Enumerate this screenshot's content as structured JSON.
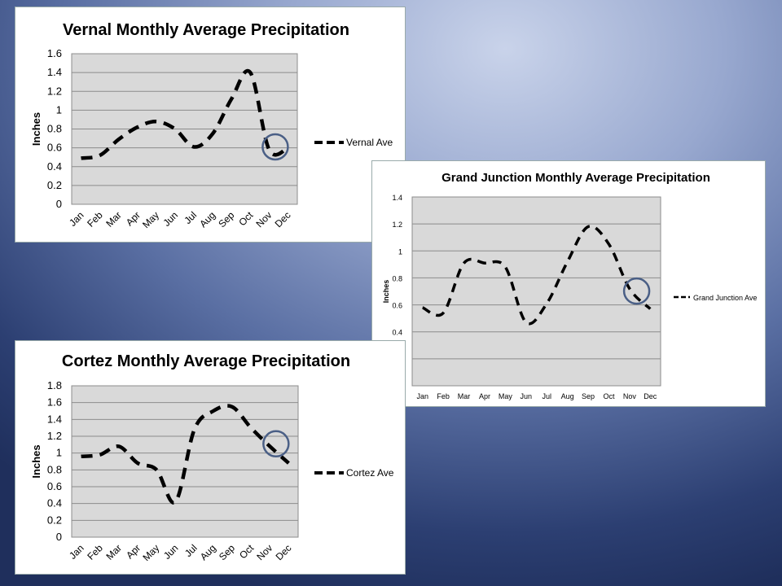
{
  "chart_data": [
    {
      "type": "line",
      "title": "Vernal Monthly Average Precipitation",
      "ylabel": "Inches",
      "xlabel": "",
      "categories": [
        "Jan",
        "Feb",
        "Mar",
        "Apr",
        "May",
        "Jun",
        "Jul",
        "Aug",
        "Sep",
        "Oct",
        "Nov",
        "Dec"
      ],
      "series": [
        {
          "name": "Vernal Ave",
          "values": [
            0.49,
            0.52,
            0.69,
            0.82,
            0.88,
            0.8,
            0.61,
            0.75,
            1.12,
            1.4,
            0.58,
            0.6
          ]
        }
      ],
      "ylim": [
        0,
        1.6
      ],
      "yticks": [
        "0",
        "0.2",
        "0.4",
        "0.6",
        "0.8",
        "1",
        "1.2",
        "1.4",
        "1.6"
      ],
      "grid": true,
      "legend": "right",
      "line_style": "dashed",
      "highlight": {
        "month": "Nov",
        "color": "#4a5f86"
      }
    },
    {
      "type": "line",
      "title": "Grand Junction Monthly Average Precipitation",
      "ylabel": "Inches",
      "xlabel": "",
      "categories": [
        "Jan",
        "Feb",
        "Mar",
        "Apr",
        "May",
        "Jun",
        "Jul",
        "Aug",
        "Sep",
        "Oct",
        "Nov",
        "Dec"
      ],
      "series": [
        {
          "name": "Grand Junction Ave",
          "values": [
            0.58,
            0.54,
            0.91,
            0.91,
            0.88,
            0.47,
            0.61,
            0.92,
            1.18,
            1.05,
            0.72,
            0.57
          ]
        }
      ],
      "ylim": [
        0,
        1.4
      ],
      "yticks": [
        "0",
        "0.2",
        "0.4",
        "0.6",
        "0.8",
        "1",
        "1.2",
        "1.4"
      ],
      "grid": true,
      "legend": "right",
      "line_style": "dashed",
      "highlight": {
        "month": "Nov",
        "color": "#4a5f86"
      }
    },
    {
      "type": "line",
      "title": "Cortez Monthly Average Precipitation",
      "ylabel": "Inches",
      "xlabel": "",
      "categories": [
        "Jan",
        "Feb",
        "Mar",
        "Apr",
        "May",
        "Jun",
        "Jul",
        "Aug",
        "Sep",
        "Oct",
        "Nov",
        "Dec"
      ],
      "series": [
        {
          "name": "Cortez Ave",
          "values": [
            0.96,
            0.98,
            1.08,
            0.88,
            0.8,
            0.42,
            1.28,
            1.5,
            1.55,
            1.3,
            1.08,
            0.88
          ]
        }
      ],
      "ylim": [
        0,
        1.8
      ],
      "yticks": [
        "0",
        "0.2",
        "0.4",
        "0.6",
        "0.8",
        "1",
        "1.2",
        "1.4",
        "1.6",
        "1.8"
      ],
      "grid": true,
      "legend": "right",
      "line_style": "dashed",
      "highlight": {
        "month": "Nov",
        "color": "#4a5f86"
      }
    }
  ]
}
